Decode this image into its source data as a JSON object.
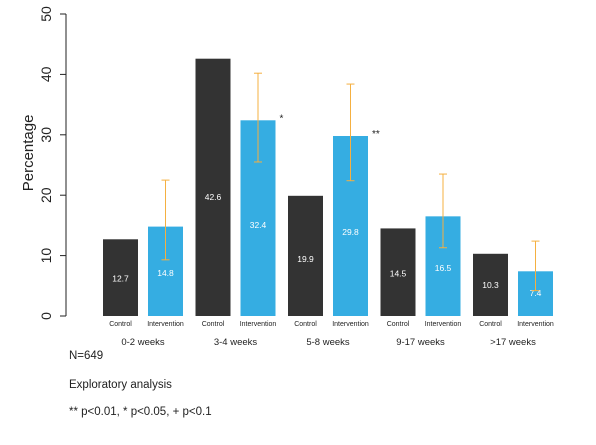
{
  "chart_data": {
    "type": "bar",
    "ylabel": "Percentage",
    "ylim": [
      0,
      50
    ],
    "yticks": [
      0,
      10,
      20,
      30,
      40,
      50
    ],
    "grid": false,
    "legend": "none",
    "groups": [
      "0-2 weeks",
      "3-4 weeks",
      "5-8 weeks",
      "9-17 weeks",
      ">17 weeks"
    ],
    "bar_labels": [
      "Control",
      "Intervention"
    ],
    "series": [
      {
        "name": "Control",
        "color": "#333333",
        "values": [
          12.7,
          42.6,
          19.9,
          14.5,
          10.3
        ],
        "labels": [
          "12.7",
          "42.6",
          "19.9",
          "14.5",
          "10.3"
        ]
      },
      {
        "name": "Intervention",
        "color": "#35ade2",
        "values": [
          14.8,
          32.4,
          29.8,
          16.5,
          7.4
        ],
        "labels": [
          "14.8",
          "32.4",
          "29.8",
          "16.5",
          "7.4"
        ],
        "error_low": [
          9.3,
          25.5,
          22.4,
          11.3,
          4.2
        ],
        "error_high": [
          22.5,
          40.2,
          38.4,
          23.5,
          12.4
        ],
        "error_color": "#f5b041"
      }
    ],
    "significance": [
      {
        "group": "3-4 weeks",
        "mark": "*"
      },
      {
        "group": "5-8 weeks",
        "mark": "**"
      }
    ]
  },
  "notes": {
    "n": "N=649",
    "analysis": "Exploratory analysis",
    "legend": "** p<0.01, * p<0.05, + p<0.1"
  }
}
